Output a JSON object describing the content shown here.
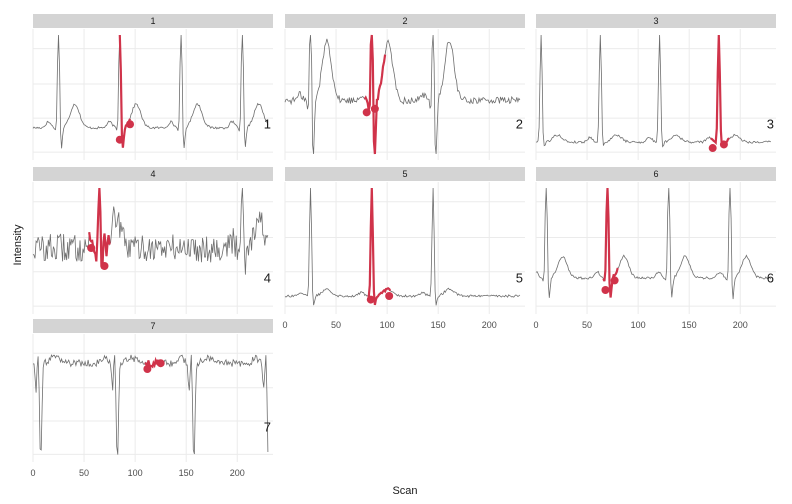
{
  "chart_data": {
    "type": "line",
    "xlabel": "Scan",
    "ylabel": "Intensity",
    "x_range": [
      0,
      235
    ],
    "x_ticks": [
      "0",
      "50",
      "100",
      "150",
      "200"
    ],
    "colors": {
      "trace": "#6e6e6e",
      "highlight": "#d0334a",
      "strip": "#d4d4d4",
      "grid": "#ebebeb"
    },
    "panels": [
      {
        "strip": "1",
        "label": "1",
        "beats": [
          25,
          85,
          145,
          205
        ],
        "baseline": 0.22,
        "r_height": 0.95,
        "s_depth": 0.2,
        "p_height": 0.05,
        "t_height": 0.2,
        "noise": 0.01,
        "highlight": [
          85,
          95
        ],
        "points": [
          [
            85,
            0.12
          ],
          [
            95,
            0.25
          ]
        ]
      },
      {
        "strip": "2",
        "label": "2",
        "beats": [
          25,
          85,
          145
        ],
        "baseline": 0.45,
        "r_height": 0.9,
        "s_depth": 0.55,
        "p_height": 0.05,
        "t_height": 0.5,
        "noise": 0.03,
        "highlight": [
          78,
          98
        ],
        "points": [
          [
            80,
            0.35
          ],
          [
            88,
            0.38
          ]
        ]
      },
      {
        "strip": "3",
        "label": "3",
        "beats": [
          5,
          63,
          121,
          179
        ],
        "baseline": 0.1,
        "r_height": 1.0,
        "s_depth": 0.05,
        "p_height": 0.04,
        "t_height": 0.06,
        "noise": 0.01,
        "highlight": [
          171,
          189
        ],
        "points": [
          [
            173,
            0.05
          ],
          [
            184,
            0.08
          ]
        ]
      },
      {
        "strip": "4",
        "label": "4",
        "beats": [
          65,
          205
        ],
        "baseline": 0.5,
        "r_height": 0.7,
        "s_depth": 0.15,
        "p_height": 0.05,
        "t_height": 0.25,
        "noise": 0.12,
        "highlight": [
          55,
          75
        ],
        "points": [
          [
            57,
            0.5
          ],
          [
            70,
            0.35
          ]
        ]
      },
      {
        "strip": "5",
        "label": "5",
        "beats": [
          25,
          85,
          145
        ],
        "baseline": 0.1,
        "r_height": 0.95,
        "s_depth": 0.1,
        "p_height": 0.03,
        "t_height": 0.06,
        "noise": 0.01,
        "highlight": [
          82,
          103
        ],
        "points": [
          [
            84,
            0.07
          ],
          [
            102,
            0.1
          ]
        ]
      },
      {
        "strip": "6",
        "label": "6",
        "beats": [
          10,
          70,
          130,
          190
        ],
        "baseline": 0.25,
        "r_height": 0.95,
        "s_depth": 0.2,
        "p_height": 0.05,
        "t_height": 0.18,
        "noise": 0.01,
        "highlight": [
          66,
          80
        ],
        "points": [
          [
            68,
            0.15
          ],
          [
            77,
            0.23
          ]
        ]
      },
      {
        "strip": "7",
        "label": "7",
        "beats": [
          5,
          80,
          155,
          228
        ],
        "baseline": 0.8,
        "r_height": 0.15,
        "s_depth": 0.85,
        "p_height": 0.05,
        "t_height": 0.05,
        "noise": 0.03,
        "highlight": [
          110,
          127
        ],
        "points": [
          [
            112,
            0.75
          ],
          [
            125,
            0.8
          ]
        ]
      }
    ]
  }
}
